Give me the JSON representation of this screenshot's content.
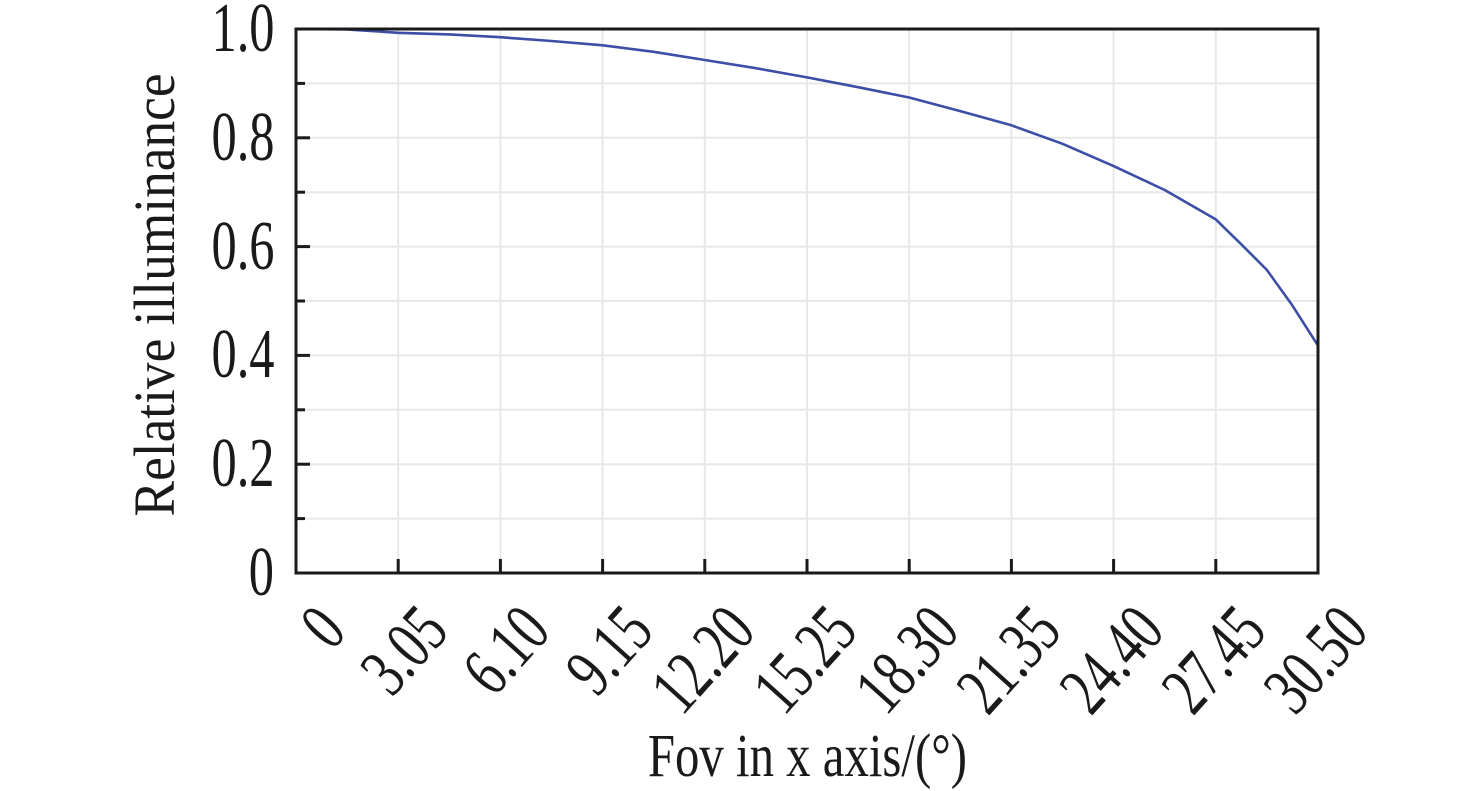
{
  "figure": {
    "background": "#ffffff",
    "frame_color": "#1a1a1a",
    "grid_color": "#e8e8e8",
    "accent_color": "#3c4ea6"
  },
  "chart_data": {
    "type": "line",
    "title": "",
    "xlabel": "Fov in x axis/(°)",
    "ylabel": "Relative illuminance",
    "xlim": [
      0,
      30.5
    ],
    "ylim": [
      0,
      1.0
    ],
    "grid": {
      "show": true,
      "horizontal_step": 0.1,
      "vertical_at_major_x_ticks": true
    },
    "x_ticks": {
      "values": [
        0,
        3.05,
        6.1,
        9.15,
        12.2,
        15.25,
        18.3,
        21.35,
        24.4,
        27.45,
        30.5
      ],
      "labels": [
        "0",
        "3.05",
        "6.10",
        "9.15",
        "12.20",
        "15.25",
        "18.30",
        "21.35",
        "24.40",
        "27.45",
        "30.50"
      ],
      "rotation_deg": 45
    },
    "y_ticks": {
      "values": [
        0,
        0.2,
        0.4,
        0.6,
        0.8,
        1.0
      ],
      "labels": [
        "0",
        "0.2",
        "0.4",
        "0.6",
        "0.8",
        "1.0"
      ],
      "minor_step": 0.1
    },
    "series": [
      {
        "name": "relative-illuminance-curve",
        "color": "#3c4ea6",
        "x": [
          0,
          1.525,
          3.05,
          4.575,
          6.1,
          7.625,
          9.15,
          10.675,
          12.2,
          13.725,
          15.25,
          16.775,
          18.3,
          19.825,
          21.35,
          22.875,
          24.4,
          25.925,
          27.45,
          28.2,
          28.975,
          29.7,
          30.5
        ],
        "y": [
          1.0,
          0.999,
          0.993,
          0.99,
          0.985,
          0.978,
          0.97,
          0.958,
          0.943,
          0.928,
          0.911,
          0.893,
          0.874,
          0.849,
          0.823,
          0.789,
          0.748,
          0.704,
          0.65,
          0.605,
          0.557,
          0.495,
          0.418
        ]
      }
    ]
  }
}
